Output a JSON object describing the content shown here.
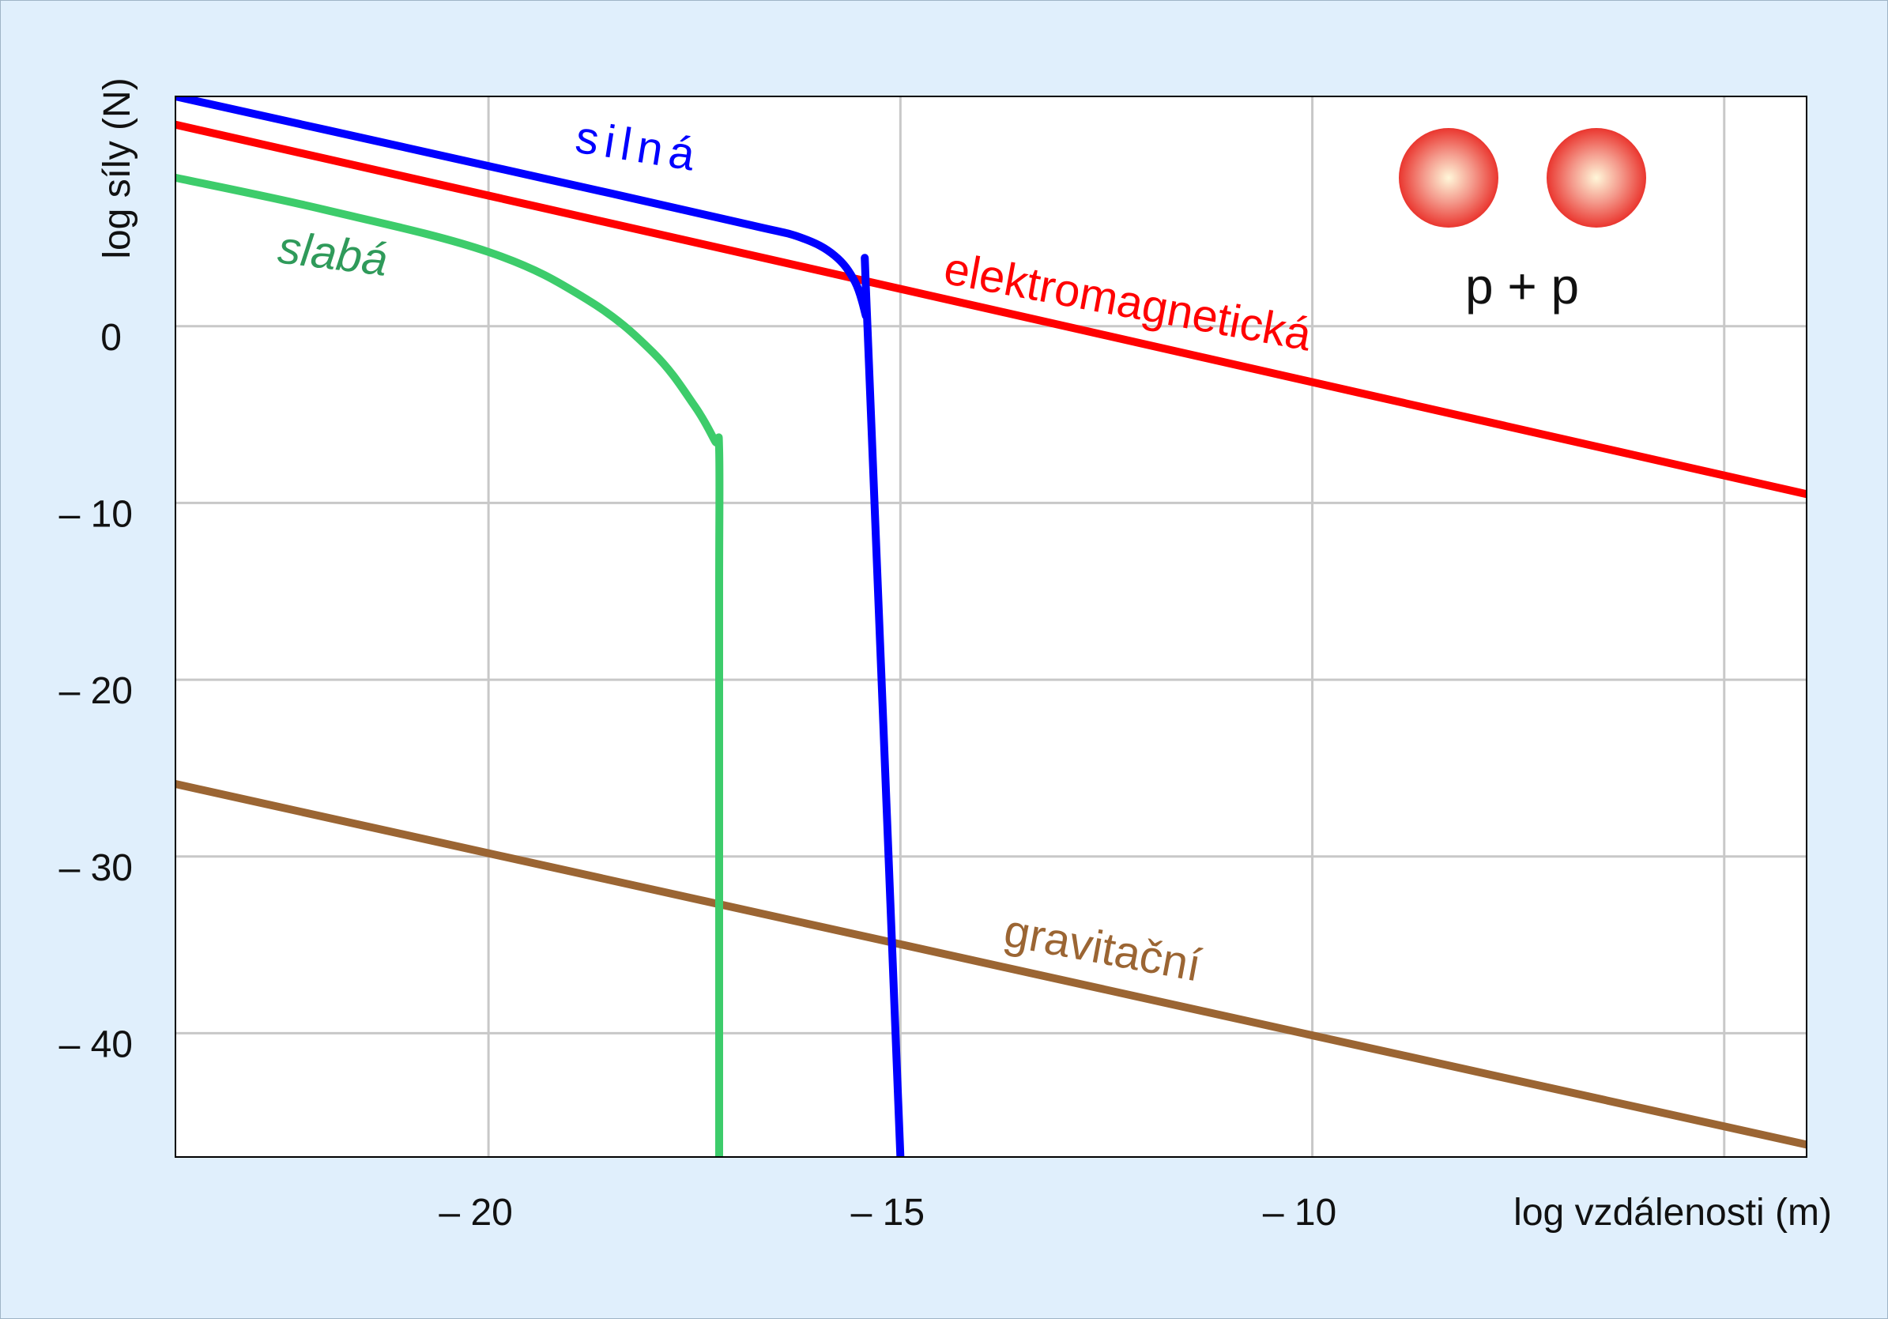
{
  "chart_data": {
    "type": "line",
    "title": "",
    "xlabel": "log vzdálenosti (m)",
    "ylabel": "log síly (N)",
    "xlim": [
      -23.8,
      -4.0
    ],
    "ylim": [
      -47,
      13
    ],
    "x_ticks": [
      -20,
      -15,
      -10,
      -5
    ],
    "x_tick_labels": [
      "– 20",
      "– 15",
      "– 10",
      ""
    ],
    "y_ticks": [
      0,
      -10,
      -20,
      -30,
      -40
    ],
    "y_tick_labels": [
      "0",
      "– 10",
      "– 20",
      "– 30",
      "– 40"
    ],
    "grid": true,
    "series": [
      {
        "name": "elektromagnetická",
        "color": "#ff0000",
        "x": [
          -23.8,
          -4.0
        ],
        "y": [
          11.4,
          -9.5
        ]
      },
      {
        "name": "silná",
        "color": "#0000ff",
        "x": [
          -23.8,
          -21.0,
          -18.5,
          -16.8,
          -16.2,
          -15.8,
          -15.55,
          -15.42,
          -15.4,
          -15.0
        ],
        "y": [
          13.0,
          10.1,
          7.5,
          5.7,
          5.0,
          4.0,
          2.5,
          0.6,
          0.0,
          -47.0
        ]
      },
      {
        "name": "slabá",
        "color": "#3dcc6b",
        "x": [
          -23.8,
          -22.0,
          -20.0,
          -18.8,
          -18.0,
          -17.5,
          -17.25,
          -17.2,
          -17.2,
          -17.2,
          -17.2
        ],
        "y": [
          8.4,
          6.6,
          4.2,
          1.5,
          -1.5,
          -4.5,
          -6.5,
          -7.0,
          -15.0,
          -30.0,
          -47.0
        ]
      },
      {
        "name": "gravitační",
        "color": "#9b6533",
        "x": [
          -23.8,
          -4.0
        ],
        "y": [
          -25.9,
          -46.3
        ]
      }
    ],
    "annotations": [
      "p + p"
    ]
  }
}
